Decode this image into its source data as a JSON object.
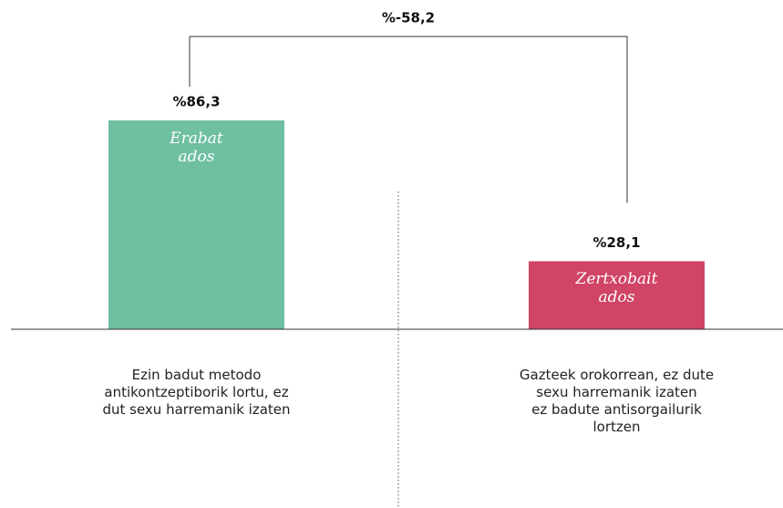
{
  "chart_data": {
    "type": "bar",
    "categories": [
      "Ezin badut metodo\nantikontzeptiborik lortu, ez\ndut sexu harremanik izaten",
      "Gazteek orokorrean, ez dute\nsexu harremanik izaten\nez badute antisorgailurik\nlortzen"
    ],
    "values": [
      86.3,
      28.1
    ],
    "value_labels": [
      "%86,3",
      "%28,1"
    ],
    "bar_labels": [
      "Erabat\nados",
      "Zertxobait\nados"
    ],
    "colors": [
      "#6fbfa1",
      "#d04466"
    ],
    "annotation": {
      "value": -58.2,
      "label": "%-58,2"
    }
  }
}
